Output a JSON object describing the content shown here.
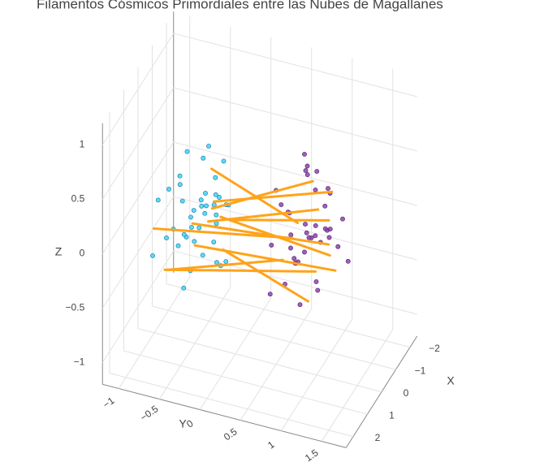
{
  "chart_data": {
    "type": "scatter3d",
    "title": "Filamentos Cósmicos Primordiales entre las Nubes de Magallanes",
    "xlabel": "X",
    "ylabel": "Y",
    "zlabel": "Z",
    "xlim": [
      -2.5,
      2.5
    ],
    "ylim": [
      -1.2,
      1.8
    ],
    "zlim": [
      -1.2,
      1.2
    ],
    "xticks": [
      {
        "value": -2,
        "label": "−2"
      },
      {
        "value": -1,
        "label": "−1"
      },
      0,
      1,
      2
    ],
    "yticks": [
      {
        "value": -1,
        "label": "−1"
      },
      {
        "value": -0.5,
        "label": "−0.5"
      },
      0,
      0.5,
      1,
      1.5
    ],
    "zticks": [
      {
        "value": -1,
        "label": "−1"
      },
      {
        "value": -0.5,
        "label": "−0.5"
      },
      0,
      0.5,
      1
    ],
    "grid": true,
    "series": [
      {
        "color": "#3fd6ee",
        "x": [
          0.1,
          -0.3,
          0.4,
          -0.5,
          0.2,
          0.6,
          -0.1,
          0.3,
          -0.6,
          0.0,
          0.5,
          -0.2,
          0.8,
          -0.4,
          0.2,
          -0.7,
          0.3,
          0.1,
          -0.3,
          0.6,
          -0.5,
          0.4,
          -0.1,
          0.7,
          -0.8,
          0.2,
          0.0,
          -0.4,
          0.5,
          -0.2,
          0.9,
          -0.6,
          0.1,
          0.3,
          -0.9,
          0.4,
          -0.3,
          0.6,
          0.0,
          -0.1
        ],
        "y": [
          -0.4,
          -0.5,
          -0.3,
          -0.6,
          -0.2,
          -0.45,
          -0.7,
          -0.35,
          -0.25,
          -0.55,
          -0.15,
          -0.8,
          -0.4,
          -0.3,
          -0.65,
          -0.5,
          -0.9,
          -0.1,
          -0.45,
          -0.6,
          -0.35,
          -0.75,
          -0.2,
          -0.3,
          -0.5,
          -0.05,
          -0.85,
          -0.4,
          -0.55,
          -0.15,
          -0.35,
          -0.7,
          -0.25,
          -0.6,
          -0.4,
          -0.95,
          -0.3,
          -0.5,
          -0.2,
          -0.65
        ],
        "z": [
          0.1,
          -0.2,
          0.3,
          -0.1,
          0.0,
          -0.4,
          0.2,
          -0.3,
          0.4,
          -0.05,
          0.15,
          -0.25,
          0.05,
          -0.5,
          0.35,
          -0.15,
          0.1,
          -0.35,
          0.45,
          -0.2,
          0.0,
          0.25,
          -0.45,
          0.3,
          -0.1,
          0.2,
          -0.3,
          0.55,
          -0.6,
          0.1,
          -0.05,
          0.4,
          -0.2,
          0.15,
          0.0,
          -0.4,
          0.3,
          -0.1,
          0.2,
          -0.25
        ]
      },
      {
        "color": "#8e44ad",
        "x": [
          -0.2,
          0.3,
          0.6,
          -0.5,
          0.1,
          -0.7,
          0.4,
          0.0,
          -0.3,
          0.8,
          -0.1,
          0.5,
          -0.6,
          0.2,
          0.7,
          -0.4,
          0.3,
          -0.8,
          0.1,
          0.5,
          -0.2,
          0.9,
          -0.5,
          0.0,
          0.4,
          -0.3,
          0.6,
          -0.1,
          0.2,
          -0.6,
          0.7,
          -0.4,
          0.3,
          0.0,
          -0.9,
          0.5,
          -0.2,
          0.1,
          0.8,
          -0.5
        ],
        "y": [
          0.9,
          0.7,
          1.1,
          0.8,
          1.0,
          0.6,
          1.2,
          0.85,
          0.95,
          0.75,
          1.15,
          0.65,
          1.05,
          0.9,
          0.55,
          1.25,
          0.8,
          1.0,
          0.7,
          1.1,
          0.95,
          0.6,
          1.3,
          0.85,
          0.75,
          1.05,
          0.9,
          0.65,
          1.2,
          0.8,
          1.0,
          0.7,
          1.1,
          0.5,
          0.95,
          1.35,
          0.85,
          0.75,
          1.0,
          0.9
        ],
        "z": [
          0.0,
          0.3,
          -0.2,
          0.5,
          0.1,
          -0.35,
          0.25,
          -0.1,
          0.6,
          -0.25,
          0.15,
          0.4,
          -0.05,
          0.7,
          -0.4,
          0.2,
          -0.15,
          0.35,
          0.05,
          -0.3,
          0.45,
          0.1,
          -0.2,
          0.8,
          0.0,
          0.3,
          -0.45,
          0.2,
          0.55,
          -0.1,
          0.25,
          -0.3,
          0.1,
          0.4,
          -0.05,
          0.15,
          0.65,
          -0.2,
          0.35,
          0.05
        ]
      }
    ],
    "filaments": {
      "color": "#ffa31a",
      "lines": [
        {
          "x": [
            0.2,
            -0.1
          ],
          "y": [
            -0.3,
            1.0
          ],
          "z": [
            0.0,
            0.3
          ]
        },
        {
          "x": [
            -0.4,
            0.3
          ],
          "y": [
            -0.6,
            1.2
          ],
          "z": [
            -0.2,
            0.1
          ]
        },
        {
          "x": [
            0.5,
            -0.3
          ],
          "y": [
            -0.2,
            0.9
          ],
          "z": [
            0.2,
            0.5
          ]
        },
        {
          "x": [
            0.0,
            0.4
          ],
          "y": [
            -0.5,
            1.3
          ],
          "z": [
            -0.3,
            -0.1
          ]
        },
        {
          "x": [
            0.6,
            0.0
          ],
          "y": [
            -0.9,
            0.7
          ],
          "z": [
            -0.1,
            0.0
          ]
        },
        {
          "x": [
            -0.2,
            -0.5
          ],
          "y": [
            -0.3,
            1.1
          ],
          "z": [
            0.1,
            0.4
          ]
        },
        {
          "x": [
            0.3,
            0.6
          ],
          "y": [
            -0.1,
            1.0
          ],
          "z": [
            -0.2,
            -0.4
          ]
        },
        {
          "x": [
            -0.6,
            0.2
          ],
          "y": [
            -0.4,
            0.8
          ],
          "z": [
            0.3,
            0.2
          ]
        },
        {
          "x": [
            0.8,
            0.1
          ],
          "y": [
            -0.7,
            0.6
          ],
          "z": [
            -0.4,
            -0.2
          ]
        },
        {
          "x": [
            -0.1,
            0.5
          ],
          "y": [
            -0.2,
            1.25
          ],
          "z": [
            0.0,
            0.05
          ]
        },
        {
          "x": [
            0.4,
            -0.2
          ],
          "y": [
            -0.8,
            0.95
          ],
          "z": [
            -0.5,
            -0.3
          ]
        },
        {
          "x": [
            -0.3,
            0.0
          ],
          "y": [
            -0.1,
            1.15
          ],
          "z": [
            -0.05,
            0.25
          ]
        }
      ]
    }
  }
}
